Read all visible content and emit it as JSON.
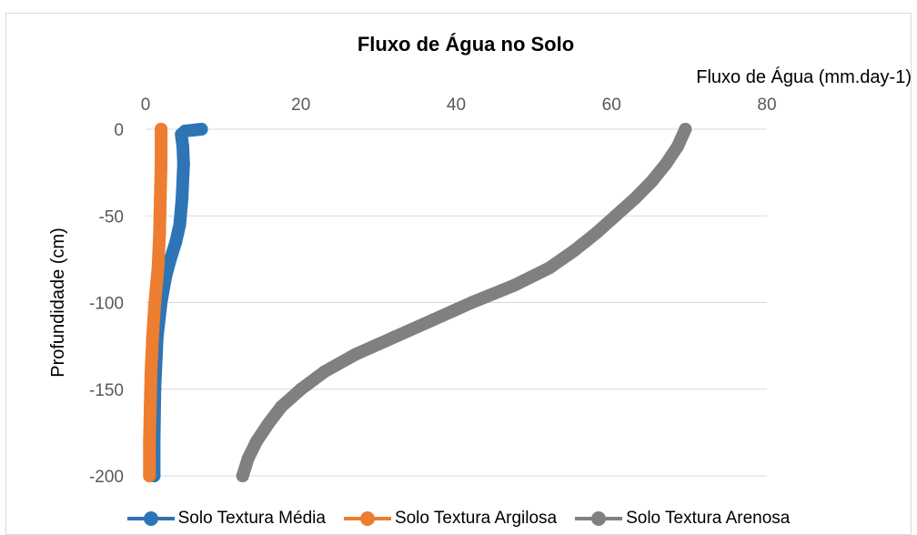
{
  "chart_data": {
    "type": "line",
    "title": "Fluxo de Água no Solo",
    "xlabel": "Fluxo de Água (mm.day-1)",
    "ylabel": "Profundidade (cm)",
    "xlim": [
      0,
      80
    ],
    "ylim": [
      -200,
      0
    ],
    "xticks": [
      0,
      20,
      40,
      60,
      80
    ],
    "yticks": [
      0,
      -50,
      -100,
      -150,
      -200
    ],
    "x_axis_position": "top",
    "grid": true,
    "legend_position": "bottom",
    "series": [
      {
        "name": "Solo Textura Média",
        "color": "#2e75b6",
        "points": [
          [
            7.2,
            0
          ],
          [
            5.1,
            -1
          ],
          [
            4.6,
            -3
          ],
          [
            4.8,
            -10
          ],
          [
            4.9,
            -20
          ],
          [
            4.7,
            -40
          ],
          [
            4.4,
            -55
          ],
          [
            3.9,
            -65
          ],
          [
            3.2,
            -75
          ],
          [
            2.6,
            -85
          ],
          [
            2.0,
            -100
          ],
          [
            1.5,
            -120
          ],
          [
            1.2,
            -150
          ],
          [
            1.1,
            -180
          ],
          [
            1.1,
            -200
          ]
        ]
      },
      {
        "name": "Solo Textura Argilosa",
        "color": "#ed7d31",
        "points": [
          [
            2.0,
            0
          ],
          [
            2.0,
            -20
          ],
          [
            1.9,
            -40
          ],
          [
            1.8,
            -60
          ],
          [
            1.6,
            -80
          ],
          [
            1.2,
            -100
          ],
          [
            0.9,
            -120
          ],
          [
            0.7,
            -140
          ],
          [
            0.6,
            -160
          ],
          [
            0.5,
            -180
          ],
          [
            0.5,
            -200
          ]
        ]
      },
      {
        "name": "Solo Textura Arenosa",
        "color": "#808080",
        "points": [
          [
            69.5,
            0
          ],
          [
            68.5,
            -10
          ],
          [
            67.0,
            -20
          ],
          [
            65.2,
            -30
          ],
          [
            63.0,
            -40
          ],
          [
            60.5,
            -50
          ],
          [
            58.0,
            -60
          ],
          [
            55.2,
            -70
          ],
          [
            52.0,
            -80
          ],
          [
            47.5,
            -90
          ],
          [
            42.0,
            -100
          ],
          [
            37.0,
            -110
          ],
          [
            32.0,
            -120
          ],
          [
            27.0,
            -130
          ],
          [
            23.0,
            -140
          ],
          [
            20.0,
            -150
          ],
          [
            17.5,
            -160
          ],
          [
            15.8,
            -170
          ],
          [
            14.3,
            -180
          ],
          [
            13.2,
            -190
          ],
          [
            12.5,
            -200
          ]
        ]
      }
    ]
  }
}
